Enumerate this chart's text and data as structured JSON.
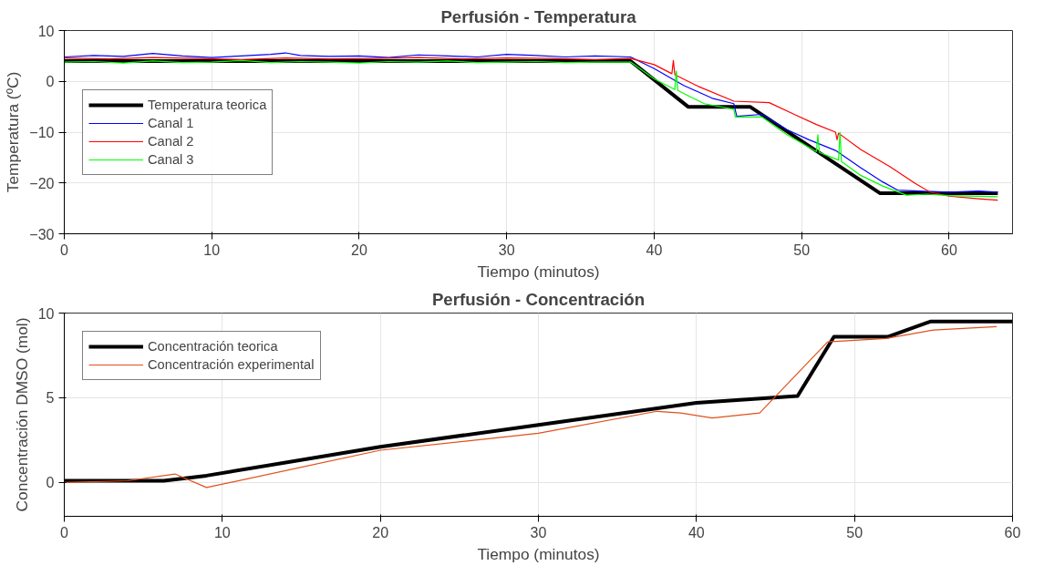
{
  "chart_data": [
    {
      "type": "line",
      "title": "Perfusión - Temperatura",
      "xlabel": "Tiempo (minutos)",
      "ylabel": "Temperatura (ºC)",
      "xlim": [
        0,
        64.3
      ],
      "ylim": [
        -30,
        10
      ],
      "xticks": [
        0,
        10,
        20,
        30,
        40,
        50,
        60
      ],
      "yticks": [
        -30,
        -20,
        -10,
        0,
        10
      ],
      "grid": true,
      "legend": "left",
      "series": [
        {
          "name": "Temperatura teorica",
          "color": "#000000",
          "x": [
            0,
            38.4,
            42.3,
            46.5,
            55.3,
            63.3
          ],
          "values": [
            4,
            4,
            -5,
            -5,
            -22,
            -22
          ]
        },
        {
          "name": "Canal 1",
          "color": "#0000ff",
          "x": [
            0,
            2,
            4,
            6,
            8,
            10,
            12,
            14,
            15,
            16,
            18,
            20,
            22,
            24,
            26,
            28,
            30,
            32,
            34,
            36,
            38.4,
            40,
            42,
            44,
            45.4,
            45.6,
            47.3,
            49,
            50.5,
            52.3,
            54,
            55.5,
            56.5,
            58,
            60,
            62,
            63.3
          ],
          "values": [
            4.8,
            5.1,
            4.9,
            5.5,
            5.0,
            4.7,
            5.0,
            5.3,
            5.6,
            5.1,
            4.9,
            5.0,
            4.7,
            5.2,
            5.0,
            4.8,
            5.3,
            5.1,
            4.8,
            5.0,
            4.8,
            2.5,
            -0.8,
            -3.4,
            -4.4,
            -6.9,
            -6.5,
            -9.5,
            -11.5,
            -13.6,
            -17,
            -19.8,
            -21.4,
            -21.6,
            -21.8,
            -21.6,
            -21.8
          ]
        },
        {
          "name": "Canal 2",
          "color": "#ff0000",
          "x": [
            0,
            3,
            6,
            9,
            12,
            15,
            18,
            21,
            24,
            27,
            30,
            33,
            36,
            38.4,
            40,
            41.2,
            41.3,
            41.4,
            43,
            45.4,
            47.8,
            49.5,
            51,
            52.3,
            52.4,
            52.5,
            54,
            56,
            57.7,
            58.7,
            60,
            62,
            63.3
          ],
          "values": [
            4.6,
            4.4,
            4.7,
            4.5,
            4.3,
            4.6,
            4.4,
            4.5,
            4.7,
            4.4,
            4.6,
            4.5,
            4.3,
            4.5,
            3.3,
            1.5,
            4.1,
            1.3,
            -1.0,
            -3.9,
            -4.2,
            -6.5,
            -8.5,
            -10,
            -11.5,
            -10.2,
            -13.4,
            -16.8,
            -20.1,
            -21.8,
            -22.6,
            -23.1,
            -23.4
          ]
        },
        {
          "name": "Canal 3",
          "color": "#00ff00",
          "x": [
            0,
            2,
            4,
            6,
            8,
            10,
            12,
            14,
            16,
            18,
            20,
            22,
            24,
            26,
            28,
            30,
            32,
            34,
            36,
            38.4,
            40,
            41.4,
            41.5,
            41.6,
            43.4,
            45.4,
            45.5,
            47.3,
            49,
            51,
            51.1,
            51.2,
            52.5,
            52.6,
            52.7,
            54,
            55.5,
            57.1,
            58.5,
            60,
            63.3
          ],
          "values": [
            3.8,
            3.9,
            3.6,
            4.0,
            3.7,
            3.8,
            4.1,
            3.7,
            3.9,
            3.8,
            3.6,
            3.9,
            3.8,
            4.0,
            3.7,
            3.8,
            3.9,
            3.7,
            3.8,
            3.8,
            0.5,
            -1.6,
            2.0,
            -1.8,
            -4.4,
            -5.5,
            -7.0,
            -7.0,
            -10.5,
            -13.8,
            -10.5,
            -14,
            -15.5,
            -10,
            -15.8,
            -18.5,
            -20.6,
            -22.4,
            -22.2,
            -22.5,
            -22.7
          ]
        }
      ]
    },
    {
      "type": "line",
      "title": "Perfusión - Concentración",
      "xlabel": "Tiempo (minutos)",
      "ylabel": "Concentración DMSO (mol)",
      "xlim": [
        0,
        60
      ],
      "ylim": [
        -2,
        10
      ],
      "xticks": [
        0,
        10,
        20,
        30,
        40,
        50,
        60
      ],
      "yticks": [
        0,
        5,
        10
      ],
      "grid": true,
      "legend": "top left",
      "series": [
        {
          "name": "Concentración teorica",
          "color": "#000000",
          "x": [
            0,
            6.3,
            9,
            20,
            30,
            40,
            46.4,
            48.7,
            52.1,
            54.8,
            60
          ],
          "values": [
            0.1,
            0.1,
            0.4,
            2.1,
            3.4,
            4.7,
            5.1,
            8.6,
            8.6,
            9.5,
            9.5
          ]
        },
        {
          "name": "Concentración experimental",
          "color": "#e0501a",
          "x": [
            0,
            4,
            7,
            9,
            20,
            30,
            37.5,
            39,
            41,
            44,
            48.3,
            52,
            55,
            59
          ],
          "values": [
            0,
            0.1,
            0.5,
            -0.3,
            1.9,
            2.9,
            4.2,
            4.1,
            3.8,
            4.1,
            8.3,
            8.5,
            9.0,
            9.2
          ]
        }
      ]
    }
  ]
}
